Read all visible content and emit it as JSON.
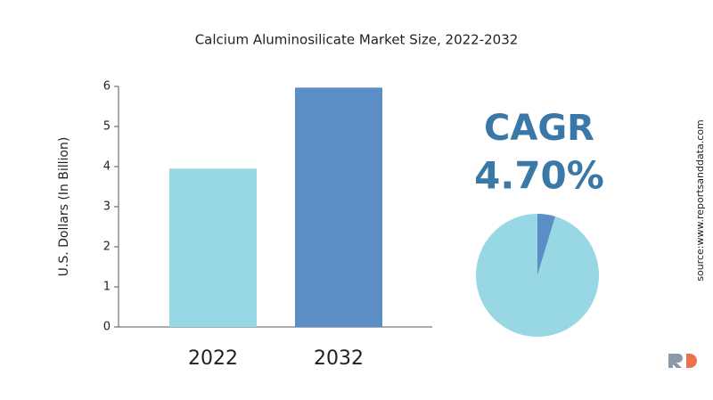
{
  "chart_data": [
    {
      "type": "bar",
      "title": "Calcium Aluminosilicate Market Size, 2022-2032",
      "y_label": "U.S. Dollars (In Billion)",
      "categories": [
        "2022",
        "2032"
      ],
      "values": [
        3.95,
        5.97
      ],
      "colors": [
        "#98d8e4",
        "#5b8dc6"
      ],
      "ylim": [
        0,
        6
      ],
      "yticks": [
        0,
        1,
        2,
        3,
        4,
        5,
        6
      ]
    },
    {
      "type": "pie",
      "annotations": [
        "CAGR",
        "4.70%"
      ],
      "values": [
        4.7,
        95.3
      ],
      "colors": [
        "#5b8dc6",
        "#98d8e4"
      ]
    }
  ],
  "source": "source:www.reportsanddata.com"
}
